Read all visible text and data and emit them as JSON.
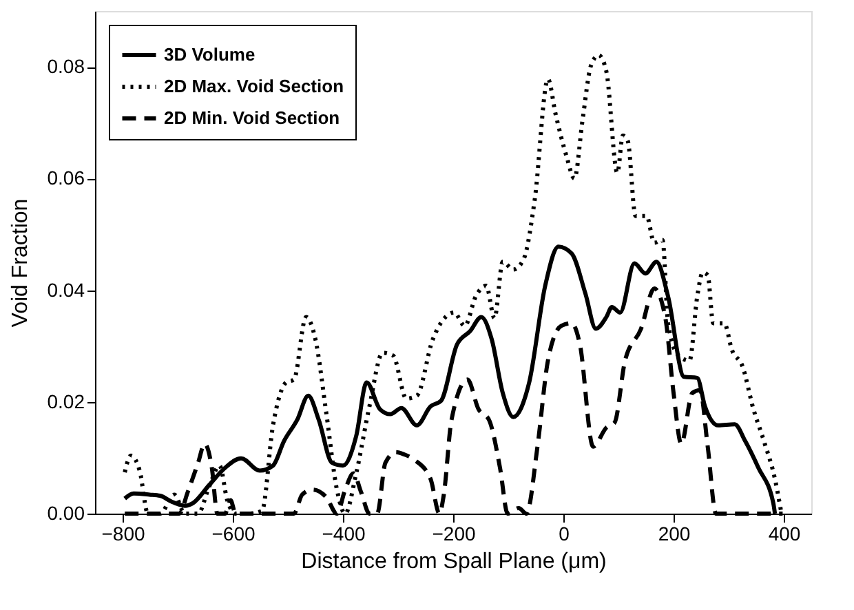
{
  "chart_data": {
    "type": "line",
    "xlabel": "Distance from Spall Plane (μm)",
    "ylabel": "Void Fraction",
    "xlim": [
      -850,
      450
    ],
    "ylim": [
      0,
      0.09
    ],
    "xticks": [
      -800,
      -600,
      -400,
      -200,
      0,
      200,
      400
    ],
    "yticks": [
      {
        "value": 0,
        "label": "0.00"
      },
      0.02,
      0.04,
      0.06,
      0.08
    ],
    "grid": false,
    "legend": "top left",
    "marker": "none",
    "series": [
      {
        "name": "3D Volume",
        "color": "#000000",
        "line_style": "solid",
        "x": [
          -796,
          -780,
          -751,
          -732,
          -712,
          -687,
          -672,
          -643,
          -614,
          -585,
          -551,
          -527,
          -507,
          -483,
          -463,
          -444,
          -420,
          -400,
          -376,
          -357,
          -333,
          -314,
          -294,
          -266,
          -241,
          -222,
          -193,
          -169,
          -149,
          -130,
          -110,
          -91,
          -62,
          -33,
          -9,
          15,
          40,
          59,
          78,
          88,
          103,
          129,
          149,
          169,
          190,
          219,
          243,
          257,
          281,
          311,
          330,
          354,
          381,
          384
        ],
        "values": [
          0.0027,
          0.0036,
          0.0034,
          0.0032,
          0.0022,
          0.0014,
          0.0019,
          0.0051,
          0.0082,
          0.0099,
          0.0077,
          0.0086,
          0.013,
          0.0168,
          0.0211,
          0.0168,
          0.0091,
          0.0086,
          0.0139,
          0.0235,
          0.0187,
          0.0178,
          0.0189,
          0.0158,
          0.0192,
          0.0202,
          0.0303,
          0.0327,
          0.0352,
          0.0312,
          0.0216,
          0.0173,
          0.0235,
          0.0408,
          0.0478,
          0.0466,
          0.0394,
          0.0331,
          0.0352,
          0.037,
          0.036,
          0.0448,
          0.043,
          0.0451,
          0.0389,
          0.0245,
          0.0243,
          0.0192,
          0.0158,
          0.016,
          0.013,
          0.0082,
          0.0019,
          0.0
        ]
      },
      {
        "name": "2D Max. Void Section",
        "color": "#000000",
        "line_style": "dotted",
        "x": [
          -796,
          -785,
          -769,
          -754,
          -732,
          -706,
          -687,
          -663,
          -643,
          -624,
          -610,
          -595,
          -572,
          -547,
          -527,
          -503,
          -489,
          -467,
          -450,
          -430,
          -411,
          -396,
          -376,
          -352,
          -328,
          -309,
          -285,
          -266,
          -237,
          -198,
          -179,
          -159,
          -140,
          -125,
          -110,
          -91,
          -72,
          -52,
          -28,
          -14,
          6,
          20,
          35,
          50,
          64,
          78,
          98,
          108,
          117,
          131,
          151,
          165,
          180,
          190,
          209,
          229,
          243,
          253,
          262,
          272,
          292,
          306,
          325,
          345,
          364,
          384,
          395
        ],
        "values": [
          0.0074,
          0.0104,
          0.0077,
          0.0,
          0.0,
          0.0034,
          0.0,
          0.0,
          0.0048,
          0.0086,
          0.0024,
          0.0,
          0.0,
          0.0005,
          0.0158,
          0.0235,
          0.024,
          0.0352,
          0.0312,
          0.0178,
          0.0043,
          0.0,
          0.0072,
          0.0192,
          0.0288,
          0.0283,
          0.0206,
          0.0211,
          0.0312,
          0.036,
          0.0336,
          0.0389,
          0.0408,
          0.035,
          0.0451,
          0.0437,
          0.0456,
          0.0562,
          0.0778,
          0.0715,
          0.0639,
          0.06,
          0.0706,
          0.0802,
          0.0821,
          0.0792,
          0.061,
          0.0677,
          0.0667,
          0.0533,
          0.0533,
          0.0485,
          0.049,
          0.0341,
          0.0283,
          0.0274,
          0.0389,
          0.0432,
          0.0427,
          0.0341,
          0.0341,
          0.0293,
          0.0264,
          0.0187,
          0.013,
          0.0062,
          0.0005
        ]
      },
      {
        "name": "2D Min. Void Section",
        "color": "#000000",
        "line_style": "dashed",
        "x": [
          -796,
          -741,
          -697,
          -682,
          -663,
          -651,
          -638,
          -628,
          -614,
          -604,
          -595,
          -489,
          -474,
          -455,
          -430,
          -411,
          -396,
          -381,
          -367,
          -352,
          -338,
          -323,
          -304,
          -289,
          -270,
          -241,
          -225,
          -217,
          -203,
          -174,
          -154,
          -135,
          -115,
          -101,
          -81,
          -67,
          -47,
          -28,
          -4,
          15,
          30,
          54,
          78,
          93,
          112,
          141,
          165,
          185,
          200,
          214,
          234,
          248,
          262,
          277,
          306,
          398
        ],
        "values": [
          0.0,
          0.0,
          0.0,
          0.0038,
          0.0091,
          0.0125,
          0.0082,
          0.0,
          0.0,
          0.0024,
          0.0,
          0.0,
          0.0034,
          0.0043,
          0.0029,
          0.0,
          0.0043,
          0.0072,
          0.0038,
          0.0,
          0.0,
          0.0091,
          0.011,
          0.0106,
          0.0096,
          0.0062,
          0.0,
          0.0034,
          0.0168,
          0.024,
          0.0187,
          0.0168,
          0.0082,
          0.0,
          0.001,
          0.0,
          0.012,
          0.0274,
          0.0336,
          0.0341,
          0.0303,
          0.012,
          0.0154,
          0.0163,
          0.0274,
          0.0331,
          0.0403,
          0.0351,
          0.0216,
          0.0125,
          0.0216,
          0.0221,
          0.012,
          0.0,
          0.0,
          0.0
        ]
      }
    ]
  }
}
